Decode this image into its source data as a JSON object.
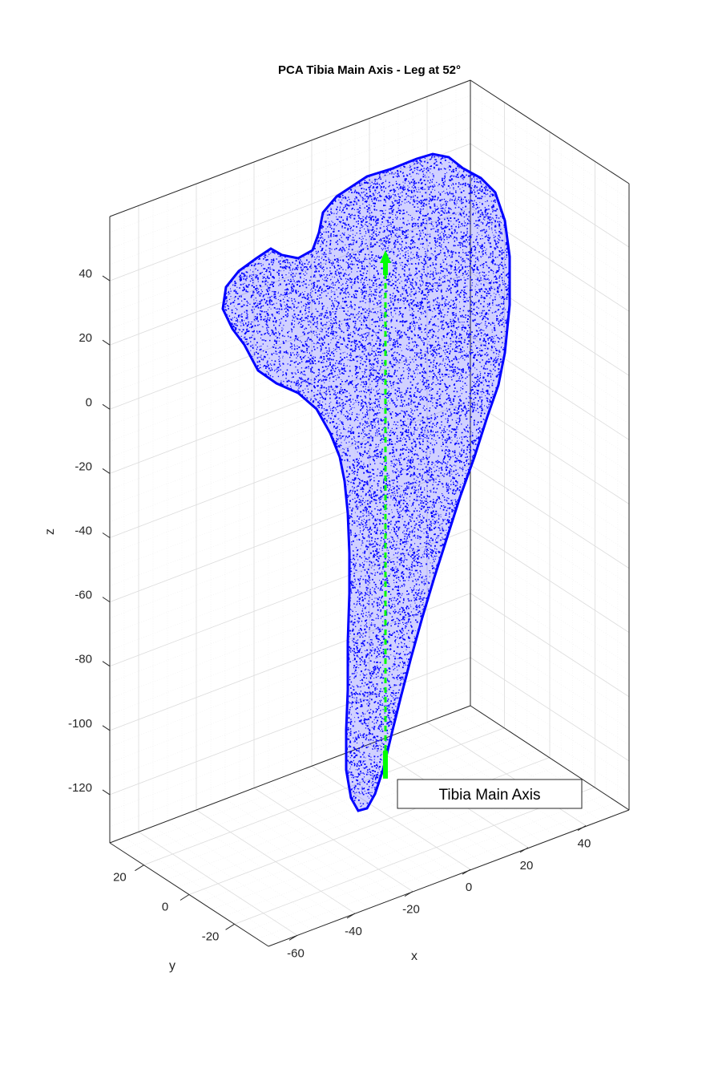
{
  "chart_data": {
    "type": "scatter3d",
    "title": "PCA Tibia Main Axis - Leg at 52°",
    "xlabel": "x",
    "ylabel": "y",
    "zlabel": "z",
    "xlim": [
      -70,
      55
    ],
    "ylim": [
      -35,
      35
    ],
    "zlim": [
      -135,
      60
    ],
    "x_ticks": [
      -60,
      -40,
      -20,
      0,
      20,
      40
    ],
    "y_ticks": [
      -20,
      0,
      20
    ],
    "z_ticks": [
      -120,
      -100,
      -80,
      -60,
      -40,
      -20,
      0,
      20,
      40
    ],
    "grid": true,
    "series": [
      {
        "marker": "point cloud",
        "color": "#0000ff",
        "description_values": {
          "z_range": [
            -126,
            52
          ]
        }
      },
      {
        "name": "Tibia Main Axis",
        "marker": "arrow",
        "color": "#00ff00",
        "line_style": "dashed",
        "z_start": -115,
        "z_end": 48
      }
    ],
    "legend": {
      "location": "bottom-right",
      "entries": [
        "Tibia Main Axis"
      ]
    }
  },
  "colors": {
    "points": "#0000ff",
    "axis_line": "#00ff00",
    "grid": "#dcdcdc",
    "box": "#262626",
    "background": "#ffffff"
  }
}
